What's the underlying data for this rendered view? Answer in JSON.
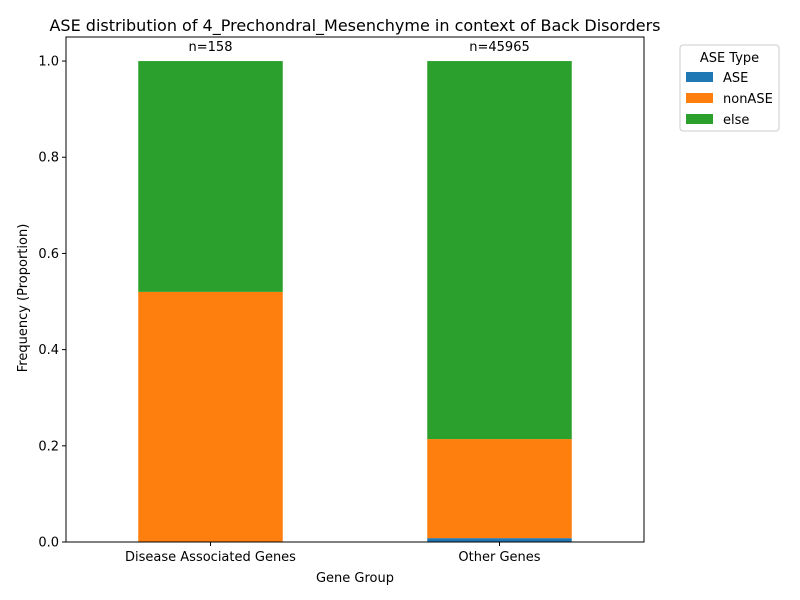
{
  "chart_data": {
    "type": "bar",
    "stacked": true,
    "title": "ASE distribution of 4_Prechondral_Mesenchyme in context of Back Disorders",
    "xlabel": "Gene Group",
    "ylabel": "Frequency (Proportion)",
    "categories": [
      "Disease Associated Genes",
      "Other Genes"
    ],
    "counts": [
      "n=158",
      "n=45965"
    ],
    "series": [
      {
        "name": "ASE",
        "color": "#1f77b4",
        "values": [
          0.0,
          0.008
        ]
      },
      {
        "name": "nonASE",
        "color": "#ff7f0e",
        "values": [
          0.52,
          0.206
        ]
      },
      {
        "name": "else",
        "color": "#2ca02c",
        "values": [
          0.48,
          0.786
        ]
      }
    ],
    "ylim": [
      0,
      1.05
    ],
    "yticks": [
      0.0,
      0.2,
      0.4,
      0.6,
      0.8,
      1.0
    ],
    "ytick_labels": [
      "0.0",
      "0.2",
      "0.4",
      "0.6",
      "0.8",
      "1.0"
    ],
    "legend": {
      "title": "ASE Type",
      "position": "outside-upper-right"
    },
    "grid": false
  }
}
